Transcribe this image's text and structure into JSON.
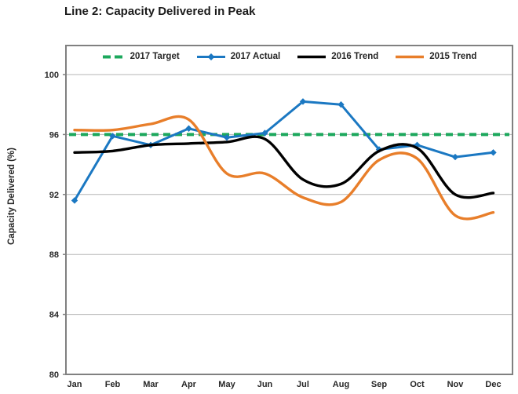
{
  "chart_data": {
    "type": "line",
    "title": "Line 2: Capacity Delivered in Peak",
    "ylabel": "Capacity Delivered (%)",
    "xlabel": "",
    "categories": [
      "Jan",
      "Feb",
      "Mar",
      "Apr",
      "May",
      "Jun",
      "Jul",
      "Aug",
      "Sep",
      "Oct",
      "Nov",
      "Dec"
    ],
    "yticks": [
      100,
      96,
      92,
      88,
      84,
      80
    ],
    "ylim": [
      80,
      102
    ],
    "grid": "horizontal-only",
    "legend_position": "top-center-inside",
    "colors": {
      "plot_border": "#808080",
      "grid": "#b5b5b5",
      "text": "#262626",
      "target_green": "#1DA85D",
      "actual_blue": "#1B78C2",
      "trend2016_black": "#000000",
      "trend2015_orange": "#E87E2A"
    },
    "series": [
      {
        "name": "2017 Target",
        "style": "dashed",
        "color": "#1DA85D",
        "values": [
          96,
          96,
          96,
          96,
          96,
          96,
          96,
          96,
          96,
          96,
          96,
          96
        ]
      },
      {
        "name": "2017 Actual",
        "style": "straight-markers",
        "marker": "diamond",
        "color": "#1B78C2",
        "values": [
          91.6,
          95.9,
          95.3,
          96.4,
          95.8,
          96.1,
          98.2,
          98.0,
          95.0,
          95.3,
          94.5,
          94.8
        ]
      },
      {
        "name": "2016 Trend",
        "style": "smooth",
        "color": "#000000",
        "values": [
          94.8,
          94.9,
          95.3,
          95.4,
          95.5,
          95.7,
          93.0,
          92.7,
          94.9,
          95.1,
          92.0,
          92.1
        ]
      },
      {
        "name": "2015 Trend",
        "style": "smooth",
        "color": "#E87E2A",
        "values": [
          96.3,
          96.3,
          96.7,
          97.0,
          93.4,
          93.4,
          91.8,
          91.5,
          94.3,
          94.4,
          90.6,
          90.8
        ]
      }
    ]
  }
}
